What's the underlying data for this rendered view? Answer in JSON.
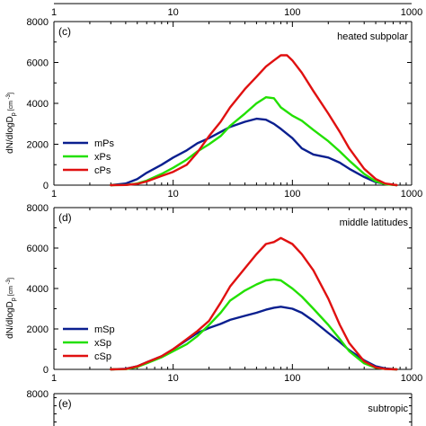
{
  "chart_data": [
    {
      "panel": "(c)",
      "region": "heated subpolar",
      "type": "line",
      "xscale": "log",
      "xlim": [
        1,
        1000
      ],
      "ylim": [
        0,
        8000
      ],
      "xticks": [
        "1",
        "10",
        "100",
        "1000"
      ],
      "yticks": [
        "0",
        "2000",
        "4000",
        "6000",
        "8000"
      ],
      "ylabel": "dN/dlogD p [cm -3]",
      "ylabel_main": "dN/dlogD",
      "ylabel_sub": "p",
      "ylabel_unit": "[cm",
      "ylabel_sup": "-3",
      "ylabel_end": "]",
      "legend_position": "center-left",
      "series": [
        {
          "name": "mPs",
          "color": "#0a1f8f",
          "x": [
            3,
            4,
            5,
            6,
            8,
            10,
            13,
            16,
            20,
            25,
            30,
            40,
            50,
            60,
            70,
            80,
            100,
            120,
            150,
            200,
            250,
            300,
            400,
            500,
            600,
            750
          ],
          "y": [
            0,
            80,
            300,
            600,
            1000,
            1350,
            1700,
            2050,
            2300,
            2600,
            2850,
            3100,
            3250,
            3200,
            3000,
            2750,
            2300,
            1800,
            1500,
            1350,
            1100,
            800,
            400,
            150,
            60,
            0
          ]
        },
        {
          "name": "xPs",
          "color": "#22e000",
          "x": [
            3,
            4,
            5,
            6,
            8,
            10,
            13,
            16,
            20,
            25,
            30,
            40,
            50,
            60,
            70,
            80,
            100,
            120,
            150,
            200,
            250,
            300,
            400,
            500,
            600,
            750
          ],
          "y": [
            0,
            10,
            80,
            220,
            550,
            850,
            1250,
            1650,
            2000,
            2400,
            2900,
            3500,
            4000,
            4300,
            4250,
            3800,
            3400,
            3150,
            2700,
            2150,
            1650,
            1200,
            550,
            180,
            50,
            0
          ]
        },
        {
          "name": "cPs",
          "color": "#e01010",
          "x": [
            3,
            4,
            5,
            6,
            8,
            10,
            13,
            16,
            20,
            25,
            30,
            40,
            50,
            60,
            70,
            80,
            90,
            100,
            120,
            150,
            200,
            250,
            300,
            400,
            500,
            600,
            750
          ],
          "y": [
            0,
            10,
            60,
            180,
            450,
            650,
            1000,
            1600,
            2400,
            3100,
            3800,
            4700,
            5300,
            5800,
            6100,
            6350,
            6350,
            6100,
            5500,
            4600,
            3500,
            2600,
            1800,
            800,
            300,
            80,
            0
          ]
        }
      ]
    },
    {
      "panel": "(d)",
      "region": "middle latitudes",
      "type": "line",
      "xscale": "log",
      "xlim": [
        1,
        1000
      ],
      "ylim": [
        0,
        8000
      ],
      "xticks": [
        "1",
        "10",
        "100",
        "1000"
      ],
      "yticks": [
        "0",
        "2000",
        "4000",
        "6000",
        "8000"
      ],
      "ylabel": "dN/dlogD p [cm -3]",
      "ylabel_main": "dN/dlogD",
      "ylabel_sub": "p",
      "ylabel_unit": "[cm",
      "ylabel_sup": "-3",
      "ylabel_end": "]",
      "legend_position": "center-left",
      "series": [
        {
          "name": "mSp",
          "color": "#0a1f8f",
          "x": [
            3,
            4,
            5,
            6,
            8,
            10,
            13,
            16,
            20,
            25,
            30,
            40,
            50,
            60,
            70,
            80,
            100,
            120,
            150,
            200,
            250,
            300,
            400,
            500,
            600,
            750
          ],
          "y": [
            0,
            30,
            150,
            350,
            650,
            1000,
            1450,
            1800,
            2050,
            2250,
            2450,
            2650,
            2800,
            2950,
            3050,
            3100,
            3000,
            2800,
            2400,
            1800,
            1350,
            950,
            450,
            150,
            50,
            0
          ]
        },
        {
          "name": "xSp",
          "color": "#22e000",
          "x": [
            3,
            4,
            5,
            6,
            8,
            10,
            13,
            16,
            20,
            25,
            30,
            40,
            50,
            60,
            70,
            80,
            100,
            120,
            150,
            200,
            250,
            300,
            400,
            500,
            600,
            750
          ],
          "y": [
            0,
            10,
            120,
            300,
            600,
            900,
            1250,
            1650,
            2200,
            2800,
            3400,
            3900,
            4200,
            4400,
            4450,
            4400,
            4000,
            3600,
            3000,
            2200,
            1500,
            900,
            300,
            80,
            20,
            0
          ]
        },
        {
          "name": "cSp",
          "color": "#e01010",
          "x": [
            3,
            4,
            5,
            6,
            8,
            10,
            13,
            16,
            20,
            25,
            30,
            40,
            50,
            60,
            70,
            80,
            100,
            120,
            150,
            200,
            250,
            300,
            400,
            500,
            600,
            750
          ],
          "y": [
            0,
            20,
            150,
            350,
            650,
            1000,
            1500,
            1900,
            2400,
            3300,
            4100,
            5000,
            5700,
            6200,
            6300,
            6500,
            6200,
            5700,
            4900,
            3500,
            2200,
            1300,
            400,
            100,
            20,
            0
          ]
        }
      ]
    },
    {
      "panel": "(e)",
      "region": "subtropic",
      "type": "line",
      "xscale": "log",
      "ylim": [
        0,
        8000
      ],
      "yticks": [
        "8000"
      ]
    }
  ]
}
